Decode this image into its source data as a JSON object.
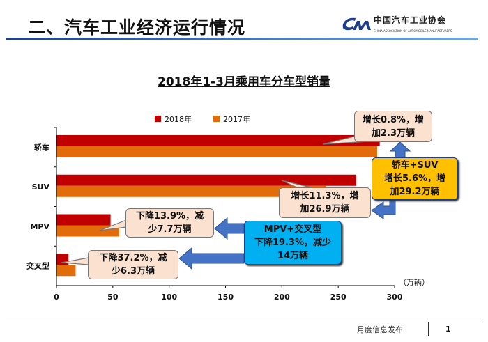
{
  "header": {
    "title": "二、汽车工业经济运行情况",
    "logo_text": "中国汽车工业协会",
    "logo_subtext": "CHINA ASSOCIATION OF AUTOMOBILE MANUFACTURERS",
    "logo_mark": "CAAM"
  },
  "chart_data": {
    "type": "bar",
    "orientation": "horizontal",
    "title": "2018年1-3月乘用车分车型销量",
    "categories": [
      "轿车",
      "SUV",
      "MPV",
      "交叉型"
    ],
    "series": [
      {
        "name": "2018年",
        "color": "#c00000",
        "values": [
          286.8,
          265.9,
          48.0,
          10.7
        ]
      },
      {
        "name": "2017年",
        "color": "#e36c0a",
        "values": [
          284.5,
          239.0,
          55.7,
          17.0
        ]
      }
    ],
    "xlim": [
      0,
      300
    ],
    "xticks": [
      "0",
      "50",
      "100",
      "150",
      "200",
      "250",
      "300"
    ],
    "unit": "（万辆）",
    "legend": "top",
    "grid": false,
    "annotations": [
      {
        "text1": "增长0.8%，增",
        "text2": "加2.3万辆"
      },
      {
        "text1": "增长11.3%，增",
        "text2": "加26.9万辆"
      },
      {
        "text1": "下降13.9%，减",
        "text2": "少7.7万辆"
      },
      {
        "text1": "下降37.2%，减",
        "text2": "少6.3万辆"
      },
      {
        "text1": "轿车+SUV",
        "text2": "增长5.6%，增",
        "text3": "加29.2万辆",
        "color": "#ffc000"
      },
      {
        "text1": "MPV+交叉型",
        "text2": "下降19.3%，减少",
        "text3": "14万辆",
        "color": "#00b0f0"
      }
    ]
  },
  "footer": {
    "label": "月度信息发布",
    "page": "1"
  }
}
